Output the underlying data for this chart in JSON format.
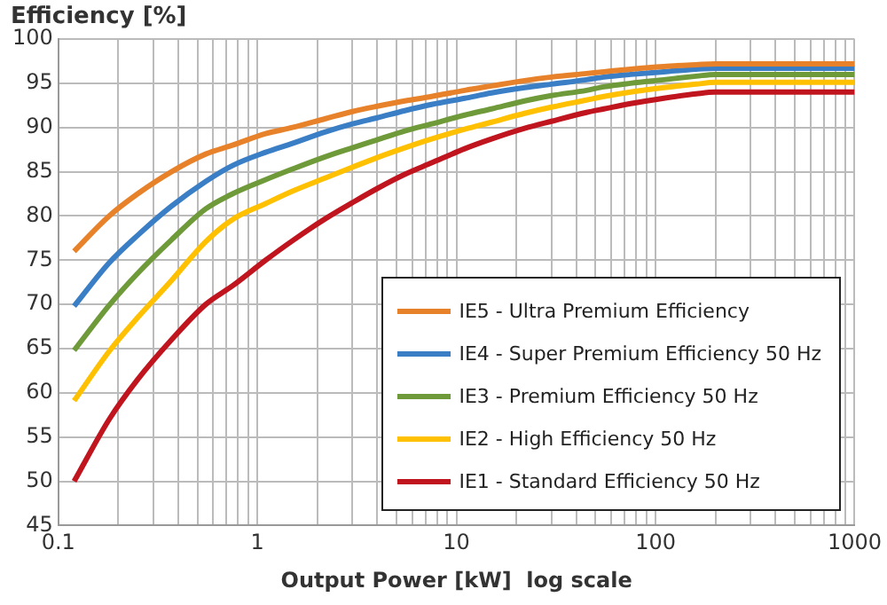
{
  "chart_data": {
    "type": "line",
    "ylabel": "Efficiency  [%]",
    "xlabel": "Output Power [kW]  log scale",
    "log": "x",
    "xlim": [
      0.1,
      1000
    ],
    "xticks": [
      0.1,
      {
        "value": 0.2,
        "label": null
      },
      {
        "value": 0.3,
        "label": null
      },
      {
        "value": 0.4,
        "label": null
      },
      {
        "value": 0.5,
        "label": null
      },
      {
        "value": 0.6,
        "label": null
      },
      {
        "value": 0.7,
        "label": null
      },
      {
        "value": 0.8,
        "label": null
      },
      {
        "value": 0.9,
        "label": null
      },
      1,
      {
        "value": 2,
        "label": null
      },
      {
        "value": 3,
        "label": null
      },
      {
        "value": 4,
        "label": null
      },
      {
        "value": 5,
        "label": null
      },
      {
        "value": 6,
        "label": null
      },
      {
        "value": 7,
        "label": null
      },
      {
        "value": 8,
        "label": null
      },
      {
        "value": 9,
        "label": null
      },
      10,
      {
        "value": 20,
        "label": null
      },
      {
        "value": 30,
        "label": null
      },
      {
        "value": 40,
        "label": null
      },
      {
        "value": 50,
        "label": null
      },
      {
        "value": 60,
        "label": null
      },
      {
        "value": 70,
        "label": null
      },
      {
        "value": 80,
        "label": null
      },
      {
        "value": 90,
        "label": null
      },
      100,
      {
        "value": 200,
        "label": null
      },
      {
        "value": 300,
        "label": null
      },
      {
        "value": 400,
        "label": null
      },
      {
        "value": 500,
        "label": null
      },
      {
        "value": 600,
        "label": null
      },
      {
        "value": 700,
        "label": null
      },
      {
        "value": 800,
        "label": null
      },
      {
        "value": 900,
        "label": null
      },
      1000
    ],
    "ylim": [
      45,
      100
    ],
    "yticks": [
      45,
      50,
      55,
      60,
      65,
      70,
      75,
      80,
      85,
      90,
      95,
      100
    ],
    "grid": true,
    "legend": "bottom right",
    "marker": "none",
    "line_style": "solid",
    "x": [
      0.12,
      0.18,
      0.25,
      0.37,
      0.55,
      0.75,
      1.1,
      1.5,
      2.2,
      3,
      4,
      5.5,
      7.5,
      11,
      15,
      22,
      30,
      45,
      55,
      75,
      110,
      160,
      200,
      1000
    ],
    "series": [
      {
        "name": "IE5 - Ultra Premium Efficiency",
        "color": "#e8822a",
        "values": [
          76,
          80,
          82.5,
          85,
          87,
          88,
          89.3,
          90,
          91,
          91.8,
          92.4,
          93,
          93.5,
          94.2,
          94.7,
          95.3,
          95.7,
          96.1,
          96.3,
          96.6,
          96.9,
          97.1,
          97.2,
          97.2
        ]
      },
      {
        "name": "IE4 - Super Premium Efficiency 50 Hz",
        "color": "#3a7ec6",
        "values": [
          69.8,
          74.7,
          77.8,
          81.1,
          83.9,
          85.7,
          87.2,
          88.2,
          89.5,
          90.4,
          91.1,
          91.9,
          92.6,
          93.3,
          93.9,
          94.5,
          94.9,
          95.4,
          95.7,
          96,
          96.3,
          96.6,
          96.7,
          96.7
        ]
      },
      {
        "name": "IE3 - Premium Efficiency 50 Hz",
        "color": "#6f9a3a",
        "values": [
          64.8,
          69.9,
          73.5,
          77.3,
          80.8,
          82.5,
          84.1,
          85.3,
          86.7,
          87.7,
          88.6,
          89.6,
          90.4,
          91.4,
          92.1,
          93,
          93.6,
          94.2,
          94.6,
          95,
          95.4,
          95.8,
          96,
          96
        ]
      },
      {
        "name": "IE2 - High Efficiency 50 Hz",
        "color": "#ffc000",
        "values": [
          59.1,
          64.7,
          68.5,
          72.7,
          77.1,
          79.6,
          81.4,
          82.8,
          84.3,
          85.5,
          86.6,
          87.7,
          88.7,
          89.8,
          90.6,
          91.6,
          92.3,
          93.1,
          93.5,
          94,
          94.5,
          94.9,
          95.1,
          95.1
        ]
      },
      {
        "name": "IE1 - Standard Efficiency 50 Hz",
        "color": "#c0141e",
        "values": [
          50,
          57,
          61.5,
          66,
          70,
          72.1,
          75,
          77.2,
          79.7,
          81.5,
          83.1,
          84.7,
          86,
          87.6,
          88.7,
          89.9,
          90.7,
          91.7,
          92.1,
          92.7,
          93.3,
          93.8,
          94,
          94
        ]
      }
    ]
  }
}
